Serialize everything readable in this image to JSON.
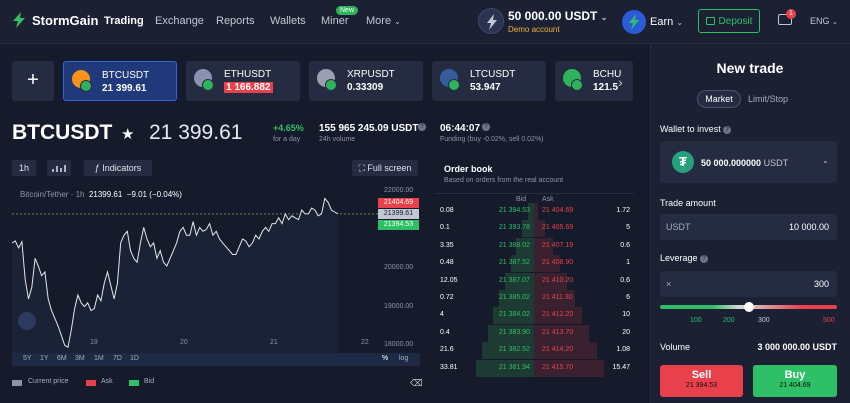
{
  "brand": {
    "name": "StormGain"
  },
  "nav": {
    "trading": "Trading",
    "exchange": "Exchange",
    "reports": "Reports",
    "wallets": "Wallets",
    "miner": "Miner",
    "miner_badge": "New",
    "more": "More"
  },
  "account": {
    "balance": "50 000.00 USDT",
    "mode": "Demo account",
    "earn": "Earn",
    "deposit": "Deposit",
    "notifications": "1",
    "language": "ENG"
  },
  "tickers": [
    {
      "symbol": "BTCUSDT",
      "price": "21 399.61",
      "active": true,
      "color": "#f7931a"
    },
    {
      "symbol": "ETHUSDT",
      "price": "1 166.882",
      "active": false,
      "color": "#8a92b2"
    },
    {
      "symbol": "XRPUSDT",
      "price": "0.33309",
      "active": false,
      "color": "#9aa0b0"
    },
    {
      "symbol": "LTCUSDT",
      "price": "53.947",
      "active": false,
      "color": "#345d9d"
    },
    {
      "symbol": "BCHU",
      "price": "121.5",
      "active": false,
      "color": "#2fb35a"
    }
  ],
  "instrument": {
    "symbol": "BTCUSDT",
    "price": "21 399.61",
    "change": "+4.65%",
    "change_label": "for a day",
    "volume": "155 965 245.09 USDT",
    "volume_label": "24h volume",
    "time": "06:44:07",
    "funding": "Funding (buy -0.02%, sell 0.02%)"
  },
  "chart_tools": {
    "interval": "1h",
    "indicators": "Indicators",
    "fullscreen": "Full screen"
  },
  "chart_data": {
    "type": "line",
    "title": "Bitcoin/Tether · 1h",
    "ohlc_label": "21399.61",
    "change_label": "−9.01 (−0.04%)",
    "x_ticks": [
      "19",
      "20",
      "21",
      "22"
    ],
    "y_ticks": [
      "22000.00",
      "21000.00",
      "20000.00",
      "19000.00",
      "18000.00"
    ],
    "ylim": [
      17800,
      22200
    ],
    "price_tags": {
      "ask": "21404.69",
      "current": "21399.61",
      "bid": "21394.53"
    },
    "periods": [
      "5Y",
      "1Y",
      "6M",
      "3M",
      "1M",
      "7D",
      "1D"
    ],
    "scale_options": [
      "%",
      "log"
    ],
    "series": [
      {
        "values": [
          20650,
          20700,
          20520,
          20680,
          19700,
          19200,
          19500,
          20250,
          20050,
          19800,
          19900,
          19200,
          18900,
          18700,
          18500,
          18250,
          18000,
          17950,
          18400,
          18950,
          19300,
          19100,
          19000,
          19100,
          18900,
          18950,
          19300,
          19150,
          19600,
          19900,
          19550,
          19200,
          19600,
          20650,
          20850,
          20950,
          20450,
          20250,
          20150,
          20650,
          21050,
          20750,
          20550,
          20650,
          20250,
          20450,
          20150,
          20050,
          20250,
          20450,
          20650,
          20950,
          21050,
          20850,
          20850,
          21200,
          20850,
          21050,
          20950,
          21000,
          21150,
          20850,
          20950,
          20750,
          20650,
          20550,
          20450,
          20350,
          20350,
          20550,
          20750,
          20700,
          20550,
          20650,
          20850,
          20750,
          20950,
          21050,
          20950,
          21150,
          21150,
          21300,
          21150,
          21400,
          21250,
          21350,
          21300,
          21250,
          21500,
          21400,
          21400,
          21550,
          21500,
          21350,
          21400,
          21800,
          21700,
          21500,
          21450,
          21400
        ]
      }
    ]
  },
  "legend": {
    "current": "Current price",
    "ask": "Ask",
    "bid": "Bid"
  },
  "orderbook": {
    "title": "Order book",
    "subtitle": "Based on orders from the real account",
    "bid_header": "Bid",
    "ask_header": "Ask",
    "rows": [
      {
        "left": "0.08",
        "bid": "21 394.53",
        "ask": "21 404.69",
        "right": "1.72"
      },
      {
        "left": "0.1",
        "bid": "21 393.78",
        "ask": "21 405.69",
        "right": "5"
      },
      {
        "left": "3.35",
        "bid": "21 388.02",
        "ask": "21 407.19",
        "right": "0.6"
      },
      {
        "left": "0.48",
        "bid": "21 387.52",
        "ask": "21 408.90",
        "right": "1"
      },
      {
        "left": "12.05",
        "bid": "21 387.07",
        "ask": "21 410.20",
        "right": "0.6"
      },
      {
        "left": "0.72",
        "bid": "21 385.02",
        "ask": "21 411.30",
        "right": "6"
      },
      {
        "left": "4",
        "bid": "21 384.02",
        "ask": "21 412.20",
        "right": "10"
      },
      {
        "left": "0.4",
        "bid": "21 383.90",
        "ask": "21 413.70",
        "right": "20"
      },
      {
        "left": "21.6",
        "bid": "21 382.52",
        "ask": "21 414.20",
        "right": "1.08"
      },
      {
        "left": "33.81",
        "bid": "21 381.94",
        "ask": "21 415.70",
        "right": "15.47"
      }
    ]
  },
  "trade": {
    "title": "New trade",
    "market": "Market",
    "limit": "Limit/Stop",
    "wallet_label": "Wallet to invest",
    "wallet_value": "50 000.000000",
    "wallet_currency": "USDT",
    "amount_label": "Trade amount",
    "amount_currency": "USDT",
    "amount_value": "10 000.00",
    "leverage_label": "Leverage",
    "leverage_prefix": "×",
    "leverage_value": "300",
    "leverage_level": 300,
    "leverage_ticks": [
      "100",
      "200",
      "300",
      "500"
    ],
    "volume_label": "Volume",
    "volume_value": "3 000 000.00 USDT",
    "sell_label": "Sell",
    "sell_price": "21 394.53",
    "buy_label": "Buy",
    "buy_price": "21 404.69"
  }
}
